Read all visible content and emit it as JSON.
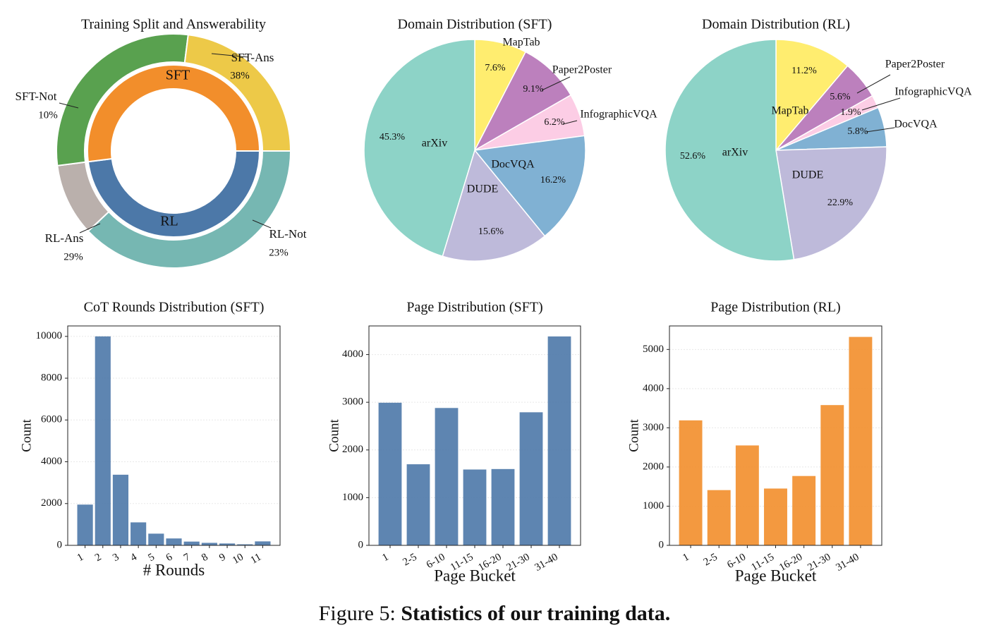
{
  "figure": {
    "caption_prefix": "Figure 5:",
    "caption_title": "Statistics of our training data."
  },
  "chart_data": [
    {
      "type": "pie",
      "title": "Training Split and Answerability",
      "inner": {
        "labels": [
          "SFT",
          "RL"
        ],
        "values": [
          48,
          52
        ],
        "colors": [
          "#4c78a8",
          "#f28e2b"
        ]
      },
      "outer": {
        "labels": [
          "SFT-Ans",
          "SFT-Not",
          "RL-Ans",
          "RL-Not"
        ],
        "values": [
          38,
          10,
          29,
          23
        ],
        "pct_labels": [
          "38%",
          "10%",
          "29%",
          "23%"
        ],
        "colors": [
          "#76b7b2",
          "#bab0ac",
          "#59a14f",
          "#edc948"
        ]
      }
    },
    {
      "type": "pie",
      "title": "Domain Distribution (SFT)",
      "labels": [
        "MapTab",
        "Paper2Poster",
        "InfographicVQA",
        "DocVQA",
        "DUDE",
        "arXiv"
      ],
      "values": [
        7.6,
        9.1,
        6.2,
        16.2,
        15.6,
        45.3
      ],
      "pct_labels": [
        "7.6%",
        "9.1%",
        "6.2%",
        "16.2%",
        "15.6%",
        "45.3%"
      ],
      "colors": [
        "#ffed6f",
        "#bc80bd",
        "#fccde5",
        "#80b1d3",
        "#bebada",
        "#8dd3c7"
      ]
    },
    {
      "type": "pie",
      "title": "Domain Distribution (RL)",
      "labels": [
        "MapTab",
        "Paper2Poster",
        "InfographicVQA",
        "DocVQA",
        "DUDE",
        "arXiv"
      ],
      "values": [
        11.2,
        5.6,
        1.9,
        5.8,
        22.9,
        52.6
      ],
      "pct_labels": [
        "11.2%",
        "5.6%",
        "1.9%",
        "5.8%",
        "22.9%",
        "52.6%"
      ],
      "colors": [
        "#ffed6f",
        "#bc80bd",
        "#fccde5",
        "#80b1d3",
        "#bebada",
        "#8dd3c7"
      ]
    },
    {
      "type": "bar",
      "title": "CoT Rounds Distribution (SFT)",
      "xlabel": "# Rounds",
      "ylabel": "Count",
      "categories": [
        "1",
        "2",
        "3",
        "4",
        "5",
        "6",
        "7",
        "8",
        "9",
        "10",
        "11"
      ],
      "values": [
        1950,
        10000,
        3380,
        1100,
        560,
        330,
        180,
        120,
        90,
        50,
        190
      ],
      "ylim": [
        0,
        10500
      ],
      "yticks": [
        0,
        2000,
        4000,
        6000,
        8000,
        10000
      ],
      "color": "#4c78a8"
    },
    {
      "type": "bar",
      "title": "Page Distribution (SFT)",
      "xlabel": "Page Bucket",
      "ylabel": "Count",
      "categories": [
        "1",
        "2-5",
        "6-10",
        "11-15",
        "16-20",
        "21-30",
        "31-40"
      ],
      "values": [
        2990,
        1700,
        2880,
        1590,
        1600,
        2790,
        4380
      ],
      "ylim": [
        0,
        4600
      ],
      "yticks": [
        0,
        1000,
        2000,
        3000,
        4000
      ],
      "color": "#4c78a8"
    },
    {
      "type": "bar",
      "title": "Page Distribution (RL)",
      "xlabel": "Page Bucket",
      "ylabel": "Count",
      "categories": [
        "1",
        "2-5",
        "6-10",
        "11-15",
        "16-20",
        "21-30",
        "31-40"
      ],
      "values": [
        3190,
        1410,
        2550,
        1450,
        1770,
        3580,
        5320
      ],
      "ylim": [
        0,
        5600
      ],
      "yticks": [
        0,
        1000,
        2000,
        3000,
        4000,
        5000
      ],
      "color": "#f28e2b"
    }
  ]
}
